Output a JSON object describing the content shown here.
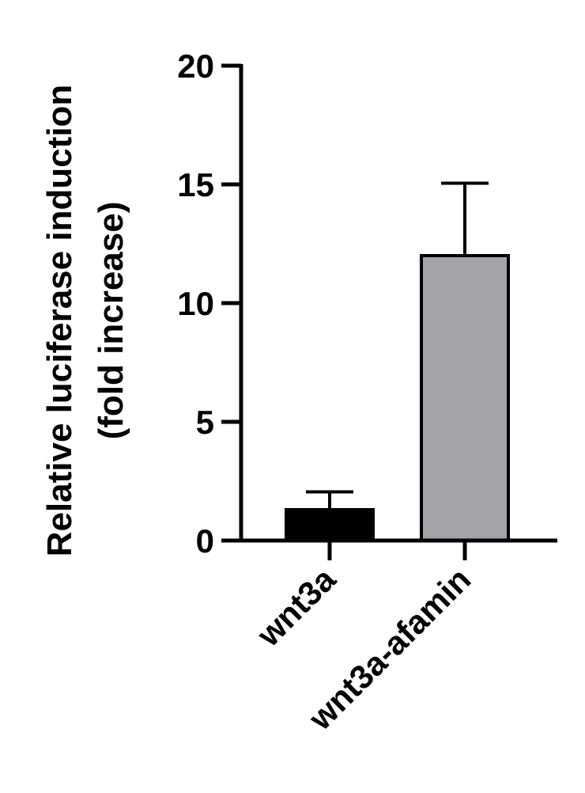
{
  "chart_data": {
    "type": "bar",
    "categories": [
      "wnt3a",
      "wnt3a-afamin"
    ],
    "values": [
      1.3,
      12.0
    ],
    "errors": [
      0.75,
      3.05
    ],
    "colors": [
      "#000000",
      "#a3a3a7"
    ],
    "ylabel_lines": [
      "Relative luciferase induction",
      "(fold increase)"
    ],
    "xlabel": "",
    "ylim": [
      0,
      20
    ],
    "yticks": [
      0,
      5,
      10,
      15,
      20
    ],
    "grid": false
  }
}
